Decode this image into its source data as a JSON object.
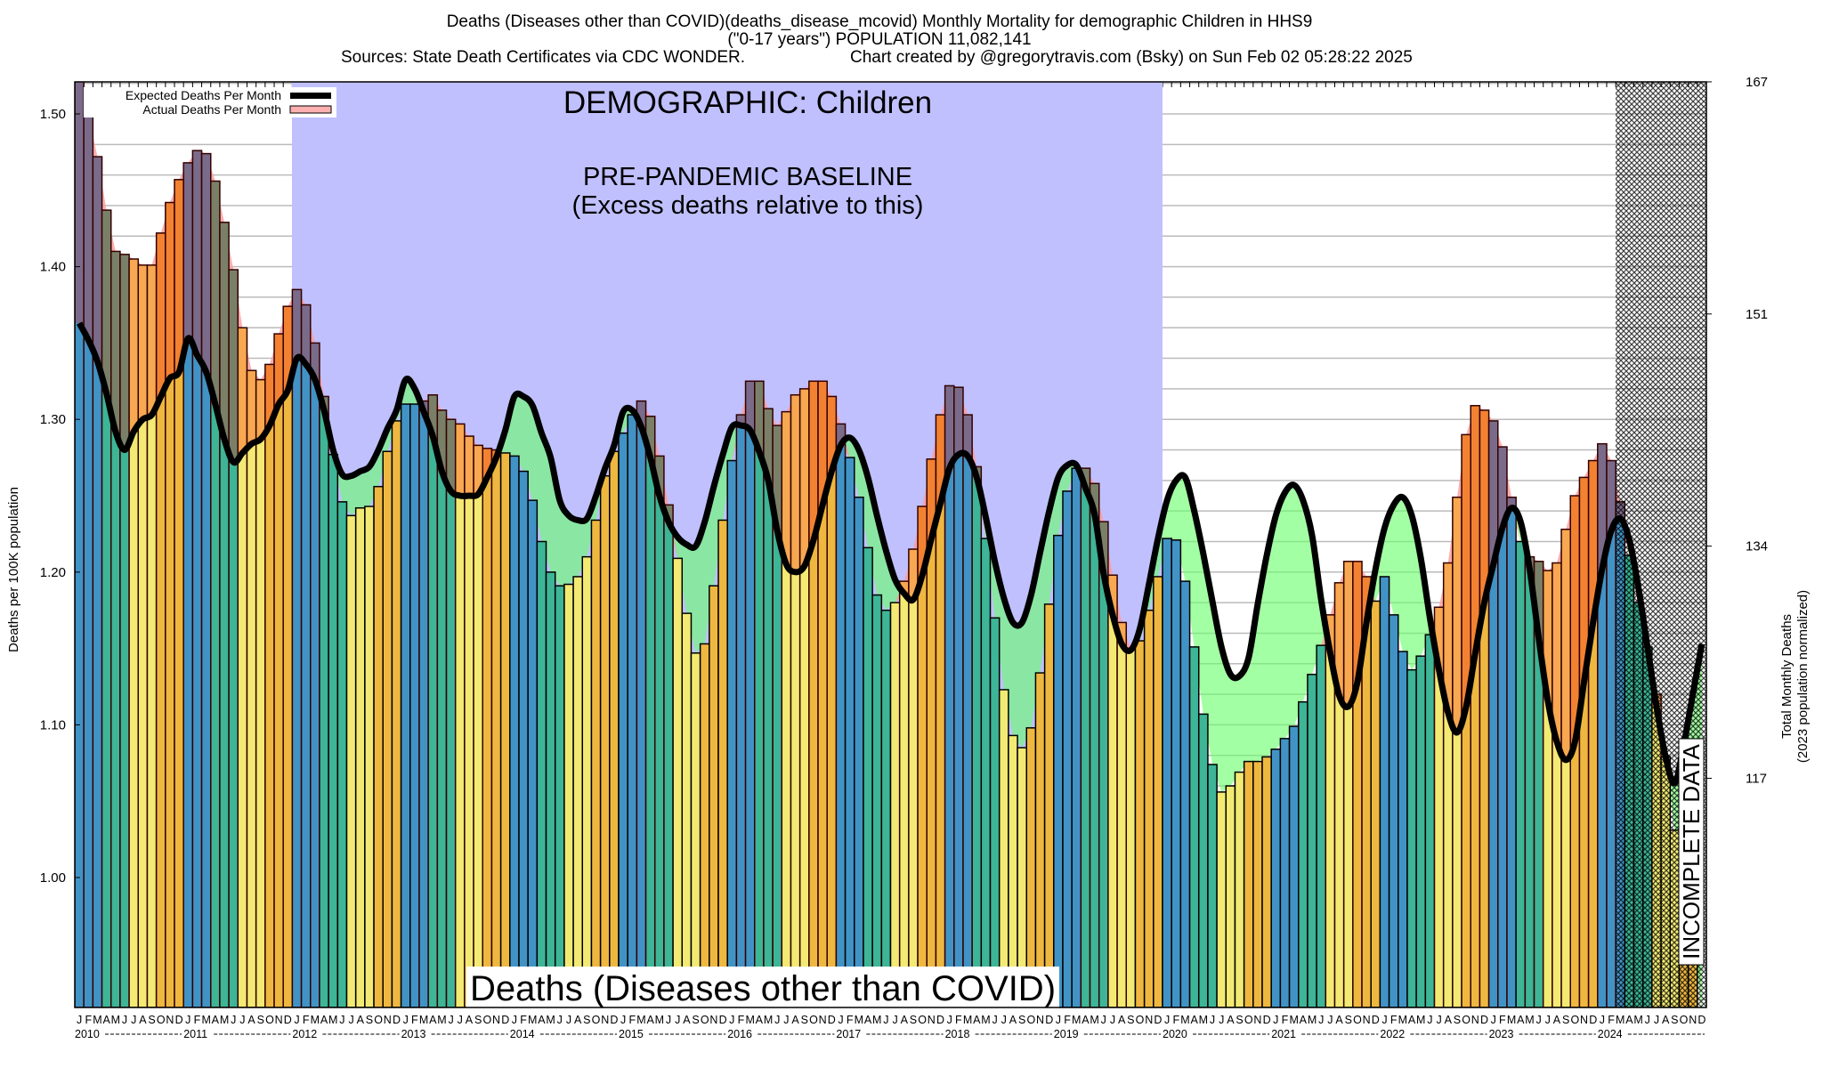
{
  "header": {
    "title_line1": "Deaths (Diseases other than COVID)(deaths_disease_mcovid) Monthly Mortality for demographic Children in HHS9",
    "title_line2": "(\"0-17 years\") POPULATION 11,082,141",
    "sources": "Sources: State Death Certificates via CDC WONDER.",
    "credit": "Chart created by @gregorytravis.com (Bsky) on Sun Feb 02 05:28:22 2025"
  },
  "annotations": {
    "demographic": "DEMOGRAPHIC: Children",
    "baseline_title": "PRE-PANDEMIC BASELINE",
    "baseline_sub": "(Excess deaths relative to this)",
    "cause_label": "Deaths (Diseases other than COVID)",
    "incomplete": "INCOMPLETE DATA"
  },
  "legend": {
    "position": "top-left",
    "expected": "Expected Deaths Per Month",
    "actual": "Actual Deaths Per Month"
  },
  "colors": {
    "q1_bar": "#4193c6",
    "q2_bar": "#3db596",
    "q3_bar": "#f2ea73",
    "q4_bar": "#eeb840",
    "q1_excess": "#7b6b8a",
    "q2_excess": "#7a8068",
    "q3_excess": "#f7a850",
    "q4_excess": "#f28232",
    "baseline_box": "#c0c0ff",
    "deficit_fill": "#66ff66",
    "excess_fill": "#ff9a9a",
    "expected_line": "#000000"
  },
  "chart_data": {
    "type": "bar",
    "title": "Deaths (Diseases other than COVID)(deaths_disease_mcovid) Monthly Mortality for demographic Children in HHS9",
    "ylabel": "Deaths per 100K population",
    "y2label_line1": "Total Monthly Deaths",
    "y2label_line2": "(2023 population normalized)",
    "ylim": [
      0.916,
      1.521
    ],
    "yticks": [
      "1.00",
      "1.10",
      "1.20",
      "1.30",
      "1.40",
      "1.50"
    ],
    "y2ticks": [
      {
        "label": "167",
        "value": 1.521
      },
      {
        "label": "151",
        "value": 1.369
      },
      {
        "label": "134",
        "value": 1.217
      },
      {
        "label": "117",
        "value": 1.065
      }
    ],
    "grid": true,
    "month_letters": [
      "J",
      "F",
      "M",
      "A",
      "M",
      "J",
      "J",
      "A",
      "S",
      "O",
      "N",
      "D"
    ],
    "years": [
      "2010",
      "2011",
      "2012",
      "2013",
      "2014",
      "2015",
      "2016",
      "2017",
      "2018",
      "2019",
      "2020",
      "2021",
      "2022",
      "2023",
      "2024"
    ],
    "baseline_period": [
      "2012-01",
      "2019-12"
    ],
    "incomplete_from": "2024-03",
    "series": [
      {
        "name": "Actual Deaths Per Month",
        "values": [
          1.53,
          1.5,
          1.472,
          1.437,
          1.41,
          1.408,
          1.405,
          1.401,
          1.401,
          1.422,
          1.442,
          1.457,
          1.468,
          1.476,
          1.474,
          1.456,
          1.429,
          1.398,
          1.36,
          1.332,
          1.326,
          1.336,
          1.356,
          1.374,
          1.385,
          1.375,
          1.35,
          1.315,
          1.277,
          1.246,
          1.237,
          1.242,
          1.243,
          1.256,
          1.279,
          1.299,
          1.31,
          1.31,
          1.312,
          1.316,
          1.306,
          1.3,
          1.297,
          1.289,
          1.283,
          1.281,
          1.28,
          1.278,
          1.276,
          1.266,
          1.247,
          1.22,
          1.2,
          1.191,
          1.192,
          1.197,
          1.21,
          1.234,
          1.263,
          1.279,
          1.291,
          1.303,
          1.312,
          1.302,
          1.276,
          1.244,
          1.209,
          1.173,
          1.147,
          1.153,
          1.191,
          1.234,
          1.273,
          1.303,
          1.325,
          1.325,
          1.307,
          1.296,
          1.305,
          1.316,
          1.32,
          1.325,
          1.325,
          1.315,
          1.297,
          1.275,
          1.249,
          1.216,
          1.185,
          1.175,
          1.18,
          1.194,
          1.215,
          1.243,
          1.274,
          1.303,
          1.322,
          1.321,
          1.303,
          1.269,
          1.222,
          1.17,
          1.123,
          1.093,
          1.085,
          1.098,
          1.134,
          1.179,
          1.224,
          1.253,
          1.268,
          1.268,
          1.258,
          1.233,
          1.198,
          1.167,
          1.15,
          1.155,
          1.175,
          1.197,
          1.222,
          1.221,
          1.194,
          1.151,
          1.107,
          1.074,
          1.056,
          1.06,
          1.069,
          1.076,
          1.076,
          1.079,
          1.084,
          1.091,
          1.099,
          1.115,
          1.133,
          1.152,
          1.172,
          1.193,
          1.207,
          1.207,
          1.197,
          1.181,
          1.197,
          1.172,
          1.148,
          1.136,
          1.145,
          1.159,
          1.177,
          1.206,
          1.249,
          1.29,
          1.309,
          1.306,
          1.299,
          1.282,
          1.249,
          1.22,
          1.21,
          1.207,
          1.201,
          1.206,
          1.228,
          1.25,
          1.262,
          1.273,
          1.284,
          1.273,
          1.246,
          1.211,
          1.18,
          1.151,
          1.12,
          1.079,
          1.031,
          0.99,
          0.97,
          0.91
        ]
      },
      {
        "name": "Expected Deaths Per Month",
        "values": [
          1.363,
          1.352,
          1.338,
          1.317,
          1.292,
          1.28,
          1.292,
          1.3,
          1.303,
          1.315,
          1.327,
          1.331,
          1.353,
          1.342,
          1.331,
          1.31,
          1.287,
          1.272,
          1.278,
          1.284,
          1.287,
          1.296,
          1.31,
          1.319,
          1.34,
          1.336,
          1.326,
          1.306,
          1.28,
          1.264,
          1.263,
          1.266,
          1.269,
          1.28,
          1.294,
          1.306,
          1.326,
          1.32,
          1.305,
          1.289,
          1.266,
          1.253,
          1.25,
          1.25,
          1.251,
          1.262,
          1.275,
          1.293,
          1.315,
          1.315,
          1.309,
          1.291,
          1.275,
          1.247,
          1.237,
          1.234,
          1.235,
          1.25,
          1.268,
          1.283,
          1.305,
          1.306,
          1.295,
          1.275,
          1.25,
          1.233,
          1.223,
          1.218,
          1.217,
          1.233,
          1.256,
          1.277,
          1.295,
          1.296,
          1.293,
          1.279,
          1.26,
          1.227,
          1.205,
          1.2,
          1.204,
          1.221,
          1.244,
          1.266,
          1.283,
          1.288,
          1.28,
          1.262,
          1.237,
          1.214,
          1.195,
          1.186,
          1.182,
          1.198,
          1.222,
          1.245,
          1.268,
          1.277,
          1.276,
          1.262,
          1.236,
          1.207,
          1.183,
          1.167,
          1.167,
          1.185,
          1.213,
          1.24,
          1.262,
          1.27,
          1.27,
          1.255,
          1.238,
          1.199,
          1.172,
          1.153,
          1.149,
          1.163,
          1.192,
          1.222,
          1.247,
          1.26,
          1.262,
          1.24,
          1.212,
          1.181,
          1.151,
          1.133,
          1.132,
          1.144,
          1.179,
          1.211,
          1.237,
          1.252,
          1.257,
          1.247,
          1.224,
          1.182,
          1.147,
          1.119,
          1.112,
          1.128,
          1.167,
          1.202,
          1.229,
          1.244,
          1.249,
          1.237,
          1.209,
          1.17,
          1.136,
          1.108,
          1.095,
          1.112,
          1.147,
          1.18,
          1.205,
          1.229,
          1.242,
          1.233,
          1.202,
          1.157,
          1.116,
          1.089,
          1.077,
          1.089,
          1.128,
          1.167,
          1.202,
          1.227,
          1.235,
          1.221,
          1.19,
          1.151,
          1.112,
          1.079,
          1.062,
          1.087,
          1.12,
          1.153
        ]
      }
    ]
  }
}
